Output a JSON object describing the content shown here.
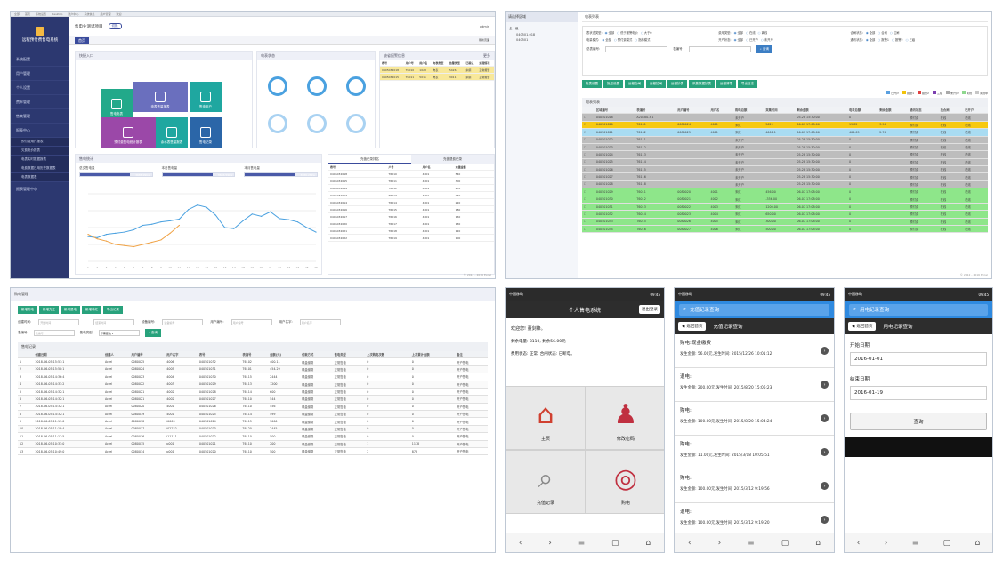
{
  "p1": {
    "browser_tabs": [
      "全部",
      "首页",
      "系统设置",
      "Desktop",
      "账户中心",
      "系统信息",
      "用户管理",
      "欢迎"
    ],
    "app_title": "远程预付费售电系统",
    "header_title": "售电业测试项目",
    "header_badge": "切换",
    "header_right": "admin",
    "header_tab": "首页",
    "refresh": "刷新页面",
    "nav": [
      "系统配置",
      "用户管理",
      "个人设置",
      "费率管理",
      "售卖管理",
      "报表中心",
      "预付费用户报表",
      "欠费电价报表",
      "电表实时数据报表",
      "电费数据日用历史数据表",
      "电表数据表",
      "报表管理中心"
    ],
    "quick_title": "快捷入口",
    "tiles": [
      "售电电表",
      "电表售量报表",
      "售电用户",
      "预付费售电统计报表",
      "余水表售量报表",
      "售电记录"
    ],
    "meter_status_title": "电表状态",
    "alarm_title": "缺省报警信息",
    "alarm_more": "更多",
    "alarm_cols": [
      "表号",
      "用户号",
      "用户名",
      "电表类型",
      "告警类型",
      "已确认",
      "处理情况"
    ],
    "alarm_rows": [
      [
        "0405032018",
        "T6010",
        "1023",
        "电表",
        "5426",
        "余额",
        "正常报警"
      ],
      [
        "0405032015",
        "T6011",
        "5011",
        "电表",
        "3011",
        "余额",
        "正常报警"
      ]
    ],
    "stats_title": "售电统计",
    "stat_labels": [
      "总交售电量",
      "本日售电量",
      "本月售电量"
    ],
    "stat_values": [
      "3686.99kw",
      "3686.59kw",
      "3686.28kw"
    ],
    "right_tabs": [
      "充值记录排名",
      "充值退费记录"
    ],
    "rank_cols": [
      "表号",
      "户号",
      "用户名",
      "充值金额"
    ],
    "rank_rows": [
      [
        "0405032018",
        "T6010",
        "4001",
        "540"
      ],
      [
        "0405032015",
        "T6011",
        "4001",
        "300"
      ],
      [
        "0405032019",
        "T6012",
        "4001",
        "270"
      ],
      [
        "0405032013",
        "T6013",
        "4001",
        "250"
      ],
      [
        "0405032014",
        "T6014",
        "4001",
        "220"
      ],
      [
        "0405032016",
        "T6015",
        "4001",
        "180"
      ],
      [
        "0405032017",
        "T6016",
        "4001",
        "150"
      ],
      [
        "0405032020",
        "T6017",
        "4001",
        "130"
      ],
      [
        "0405032021",
        "T6018",
        "4001",
        "120"
      ],
      [
        "0405032022",
        "T6019",
        "4001",
        "100"
      ]
    ],
    "footer": "© 2012 - 2016 Excel"
  },
  "chart_data": {
    "type": "line",
    "categories": [
      "1",
      "2",
      "3",
      "4",
      "5",
      "6",
      "7",
      "8",
      "9",
      "10",
      "11",
      "12",
      "13",
      "14",
      "15",
      "16",
      "17",
      "18",
      "19",
      "20",
      "21",
      "22",
      "23",
      "24",
      "25",
      "26"
    ],
    "series": [
      {
        "values": [
          44,
          42,
          48,
          50,
          52,
          56,
          64,
          66,
          70,
          72,
          75,
          92,
          100,
          96,
          82,
          60,
          58,
          72,
          84,
          80,
          88,
          76,
          74,
          70,
          60,
          52
        ]
      },
      {
        "values": [
          48,
          40,
          36,
          30,
          28,
          26,
          30,
          34,
          38,
          50,
          64,
          null,
          null,
          null,
          null,
          null,
          null,
          null,
          null,
          null,
          null,
          null,
          null,
          null,
          null,
          null
        ]
      }
    ],
    "ylim": [
      0,
      120
    ]
  },
  "p2": {
    "tree_title": "请选择区域",
    "tree": [
      "全一级",
      "040501.018",
      "040501"
    ],
    "panel_title": "电表列表",
    "filters": [
      {
        "label": "表状态类型:",
        "opts": [
          "全部",
          "低于报警电价",
          "大于0"
        ]
      },
      {
        "label": "费用类型:",
        "opts": [
          "全部",
          "在线",
          "离线"
        ]
      },
      {
        "label": "合闸状态:",
        "opts": [
          "全部",
          "合闸",
          "拉闸"
        ]
      },
      {
        "label": "电量模式:",
        "opts": [
          "全部",
          "预付费模式",
          "指标模式"
        ]
      },
      {
        "label": "开户状态:",
        "opts": [
          "全部",
          "已开户",
          "未开户"
        ]
      },
      {
        "label": "通讯状态:",
        "opts": [
          "全部",
          "报警1",
          "报警2",
          "三级"
        ]
      }
    ],
    "search_label1": "总表编号:",
    "search_label2": "表编号:",
    "search_btn": "查询",
    "buttons": [
      "电表设置",
      "批量设置",
      "远程合闸",
      "远程拉闸",
      "远程抄表",
      "采集数据抄表",
      "远程清零",
      "导出日志"
    ],
    "legend": [
      "已开户",
      "报警1",
      "报警2",
      "三级",
      "未开户",
      "离线",
      "离线中"
    ],
    "grid_title": "电表列表",
    "cols": [
      "",
      "区域编号",
      "表编号",
      "用户编号",
      "用户名",
      "购电总额",
      "采集时间",
      "剩余金额",
      "电表总额",
      "剩余金额",
      "通讯状态",
      "拉合闸",
      "已开户"
    ],
    "rows": [
      [
        "040501018",
        "A20180.3.1",
        "",
        "",
        "未开户",
        "",
        "05-28 15:30:00",
        "0",
        "",
        "预付费",
        "在线",
        "在线",
        "否",
        "g"
      ],
      [
        "040501020",
        "T6101",
        "0080024",
        "4001",
        "宋红",
        "5629",
        "06-07 17:08:00",
        "15.82",
        "3.94",
        "预付费",
        "在线",
        "在线",
        "是",
        "y"
      ],
      [
        "040501021",
        "T6102",
        "0080025",
        "4001",
        "宋红",
        "400.11",
        "06-07 17:08:00",
        "400.05",
        "2.74",
        "预付费",
        "在线",
        "在线",
        "是",
        "c"
      ],
      [
        "040501022",
        "T6111",
        "",
        "",
        "未开户",
        "",
        "05-28 15:30:00",
        "0",
        "",
        "预付费",
        "在线",
        "在线",
        "否",
        "g"
      ],
      [
        "040501023",
        "T6112",
        "",
        "",
        "未开户",
        "",
        "05-28 15:30:00",
        "0",
        "",
        "预付费",
        "在线",
        "在线",
        "否",
        "g"
      ],
      [
        "040501024",
        "T6113",
        "",
        "",
        "未开户",
        "",
        "05-28 15:30:00",
        "0",
        "",
        "预付费",
        "在线",
        "在线",
        "否",
        "g"
      ],
      [
        "040501025",
        "T6114",
        "",
        "",
        "未开户",
        "",
        "05-28 15:30:00",
        "0",
        "",
        "预付费",
        "在线",
        "在线",
        "否",
        "g"
      ],
      [
        "040501026",
        "T6115",
        "",
        "",
        "未开户",
        "",
        "05-28 15:30:00",
        "0",
        "",
        "预付费",
        "在线",
        "在线",
        "否",
        "g"
      ],
      [
        "040501027",
        "T6116",
        "",
        "",
        "未开户",
        "",
        "05-28 15:30:00",
        "0",
        "",
        "预付费",
        "在线",
        "在线",
        "否",
        "g"
      ],
      [
        "040501028",
        "T6118",
        "",
        "",
        "未开户",
        "",
        "05-28 15:30:00",
        "0",
        "",
        "预付费",
        "在线",
        "在线",
        "否",
        "g"
      ],
      [
        "040501029",
        "T6011",
        "0080020",
        "4001",
        "宋红",
        "456.00",
        "06-07 17:08:00",
        "0",
        "",
        "预付费",
        "在线",
        "在线",
        "是",
        "n"
      ],
      [
        "040501030",
        "T6012",
        "0080021",
        "4002",
        "宋红",
        "-356.00",
        "06-07 17:08:00",
        "0",
        "",
        "预付费",
        "在线",
        "在线",
        "是",
        "n"
      ],
      [
        "040501031",
        "T6013",
        "0080022",
        "4003",
        "宋红",
        "1200.00",
        "06-07 17:08:00",
        "0",
        "",
        "预付费",
        "在线",
        "在线",
        "是",
        "n"
      ],
      [
        "040501032",
        "T6014",
        "0080023",
        "4004",
        "宋红",
        "650.00",
        "06-07 17:08:00",
        "0",
        "",
        "预付费",
        "在线",
        "在线",
        "是",
        "n"
      ],
      [
        "040501033",
        "T6015",
        "0080026",
        "4005",
        "宋红",
        "300.00",
        "06-07 17:08:00",
        "0",
        "",
        "预付费",
        "在线",
        "在线",
        "是",
        "n"
      ],
      [
        "040501034",
        "T6016",
        "0080027",
        "4006",
        "宋红",
        "500.00",
        "06-07 17:08:00",
        "0",
        "",
        "预付费",
        "在线",
        "在线",
        "是",
        "n"
      ]
    ],
    "footer": "© 2012 - 2016 Excel"
  },
  "p3": {
    "title": "购电管理",
    "buttons": [
      "新增购电",
      "新增充正",
      "新增退电",
      "新增冲红",
      "导出记录"
    ],
    "filters": [
      {
        "label": "创建时间:",
        "ph": "开始时间"
      },
      {
        "label": "",
        "ph": "结束时间"
      },
      {
        "label": "设备编号:",
        "ph": "设备编号"
      },
      {
        "label": "用户编号:",
        "ph": "用户编号"
      },
      {
        "label": "用户名字:",
        "ph": "用户名字"
      }
    ],
    "filter2_label": "表编号:",
    "filter2_ph": "表编号",
    "filter3_label": "售电类型:",
    "filter3_val": "不需要电",
    "search_btn": "查询",
    "grid_title": "售电记录",
    "cols": [
      "",
      "创建日期",
      "创建人",
      "用户编号",
      "用户名字",
      "表号",
      "表编号",
      "金额(元)",
      "付款方式",
      "售电类型",
      "上次购电次数",
      "上次累计金额",
      "备注"
    ],
    "rows": [
      [
        "1",
        "2018-06-05 15:51:1",
        "Acrel",
        "0080025",
        "4006",
        "040501032",
        "T6102",
        "400.11",
        "现金缴费",
        "正常售电",
        "0",
        "0",
        "开户售电"
      ],
      [
        "2",
        "2018-06-05 15:50:1",
        "Acrel",
        "0080024",
        "4005",
        "040501031",
        "T6101",
        "454.29",
        "现金缴费",
        "正常售电",
        "0",
        "0",
        "开户售电"
      ],
      [
        "3",
        "2018-06-05 14:36:4",
        "Acrel",
        "0080023",
        "4004",
        "040501030",
        "T6115",
        "2444",
        "现金缴费",
        "正常售电",
        "0",
        "0",
        "开户售电"
      ],
      [
        "4",
        "2018-06-05 14:33:2",
        "Acrel",
        "0080022",
        "4003",
        "040501029",
        "T6113",
        "1200",
        "现金缴费",
        "正常售电",
        "0",
        "0",
        "开户售电"
      ],
      [
        "5",
        "2018-06-05 14:32:1",
        "Acrel",
        "0080021",
        "4002",
        "040501028",
        "T6114",
        "600",
        "现金缴费",
        "正常售电",
        "0",
        "0",
        "开户售电"
      ],
      [
        "6",
        "2018-06-05 14:32:1",
        "Acrel",
        "0080021",
        "4002",
        "040501027",
        "T6110",
        "544",
        "现金缴费",
        "正常售电",
        "0",
        "0",
        "开户售电"
      ],
      [
        "7",
        "2018-06-05 14:32:1",
        "Acrel",
        "0080020",
        "4001",
        "040501026",
        "T6110",
        "456",
        "现金缴费",
        "正常售电",
        "0",
        "0",
        "开户售电"
      ],
      [
        "8",
        "2018-06-05 14:32:1",
        "Acrel",
        "0080019",
        "4001",
        "040501025",
        "T6114",
        "499",
        "现金缴费",
        "正常售电",
        "0",
        "0",
        "开户售电"
      ],
      [
        "9",
        "2018-06-05 11:19:0",
        "Acrel",
        "0080018",
        "i0003",
        "040501024",
        "T6115",
        "3000",
        "现金缴费",
        "正常售电",
        "0",
        "0",
        "开户售电"
      ],
      [
        "10",
        "2018-06-05 11:18:4",
        "Acrel",
        "0080017",
        "i02222",
        "040501023",
        "T6120",
        "2445",
        "现金缴费",
        "正常售电",
        "0",
        "0",
        "开户售电"
      ],
      [
        "11",
        "2018-06-05 11:17:5",
        "Acrel",
        "0080016",
        "i11111",
        "040501022",
        "T6110",
        "500",
        "现金缴费",
        "正常售电",
        "0",
        "0",
        "开户售电"
      ],
      [
        "12",
        "2018-06-05 10:33:0",
        "Acrel",
        "0080015",
        "p001",
        "040501021",
        "T6110",
        "200",
        "现金缴费",
        "正常售电",
        "1",
        "1178",
        "开户售电"
      ],
      [
        "13",
        "2018-06-05 10:49:0",
        "Acrel",
        "0080014",
        "p001",
        "040501020",
        "T6110",
        "500",
        "现金缴费",
        "正常售电",
        "2",
        "878",
        "开户售电"
      ]
    ]
  },
  "ph1": {
    "status_left": "中国移动",
    "status_right": "09:45",
    "title": "个人售电系统",
    "logout": "退出登录",
    "welcome": "欢迎您! 董剑锋。",
    "info1": "剩余电量: 3110, 剩余56.00元",
    "info2": "费用状态: 正常, 合闸状态: 已断电。",
    "tiles": [
      "主页",
      "修改密码",
      "充值记录",
      "购电"
    ]
  },
  "ph2": {
    "status_left": "中国移动",
    "status_right": "09:45",
    "search": "充值记录查询",
    "back": "返回首页",
    "title": "充值记录查询",
    "records": [
      {
        "t": "购电:现金缴费",
        "d": "发生金额: 56.00元,发生时间: 2015/12/26 10:01:12"
      },
      {
        "t": "退电:",
        "d": "发生金额: 200.00元,发生时间: 2015/8/20 15:06:23"
      },
      {
        "t": "购电:",
        "d": "发生金额: 100.00元,发生时间: 2015/8/20 15:04:24"
      },
      {
        "t": "购电:",
        "d": "发生金额: 11.00元,发生时间: 2015/3/18 10:05:51"
      },
      {
        "t": "购电:",
        "d": "发生金额: 100.00元,发生时间: 2015/3/12 9:19:56"
      },
      {
        "t": "退电:",
        "d": "发生金额: 100.00元,发生时间: 2015/3/12 9:19:20"
      }
    ]
  },
  "ph3": {
    "status_left": "中国移动",
    "status_right": "09:45",
    "search": "用电记录查询",
    "back": "返回首页",
    "title": "用电记录查询",
    "start_label": "开始日期",
    "start_val": "2016-01-01",
    "end_label": "结束日期",
    "end_val": "2016-01-19",
    "query_btn": "查询"
  }
}
